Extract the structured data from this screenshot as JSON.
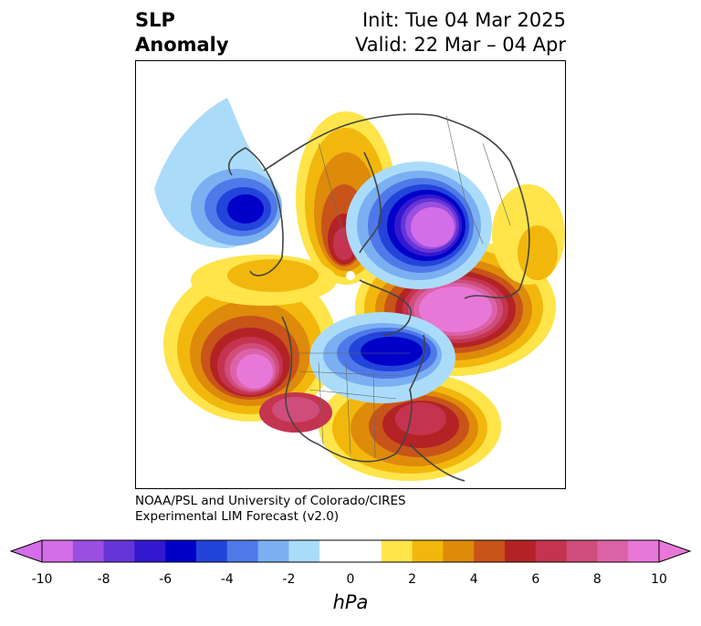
{
  "title": {
    "left_line1": "SLP",
    "left_line2": "Anomaly",
    "right_line1": "Init: Tue 04 Mar 2025",
    "right_line2": "Valid: 22 Mar – 04 Apr"
  },
  "credit": {
    "line1": "NOAA/PSL and University of Colorado/CIRES",
    "line2": "Experimental LIM Forecast (v2.0)"
  },
  "colorbar": {
    "unit_label": "hPa",
    "ticks": [
      "-10",
      "-8",
      "-6",
      "-4",
      "-2",
      "0",
      "2",
      "4",
      "6",
      "8",
      "10"
    ],
    "colors": [
      "#d36ee8",
      "#9a4fe0",
      "#6535d8",
      "#3418cf",
      "#0000c8",
      "#2344da",
      "#4f79e8",
      "#7ab0f2",
      "#aadcfa",
      "#ffffff",
      "#ffffff",
      "#ffe44a",
      "#f2b70c",
      "#de8a0b",
      "#c8541a",
      "#b32325",
      "#c43450",
      "#cf4d7a",
      "#dc62a8",
      "#e878d8"
    ],
    "extend_min_color": "#d36ee8",
    "extend_max_color": "#e878d8"
  },
  "map": {
    "projection": "polar-stereographic-north",
    "anomalies": [
      {
        "region": "Alaska/Bering",
        "sign": "negative",
        "peak_hPa": -6
      },
      {
        "region": "Northern Europe/Barents",
        "sign": "negative",
        "peak_hPa": -10
      },
      {
        "region": "Hudson Bay/Labrador",
        "sign": "negative",
        "peak_hPa": -6
      },
      {
        "region": "Central Pacific",
        "sign": "positive",
        "peak_hPa": 10
      },
      {
        "region": "North Atlantic/Azores",
        "sign": "positive",
        "peak_hPa": 10
      },
      {
        "region": "Western US",
        "sign": "positive",
        "peak_hPa": 8
      },
      {
        "region": "Eastern US/Western Atlantic",
        "sign": "positive",
        "peak_hPa": 6
      },
      {
        "region": "Central Siberia",
        "sign": "positive",
        "peak_hPa": 6
      }
    ]
  }
}
